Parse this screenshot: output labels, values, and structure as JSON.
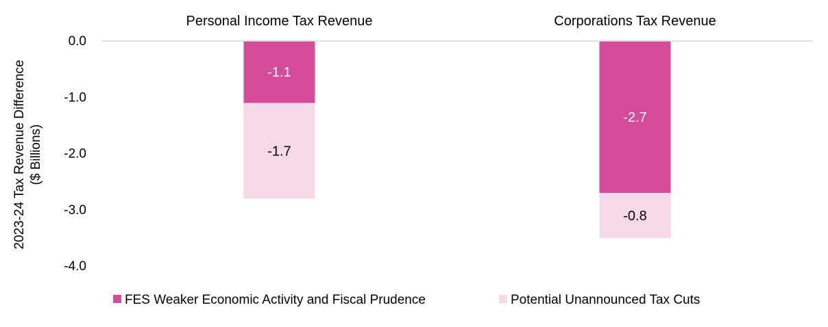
{
  "chart_data": {
    "type": "bar",
    "stacked": true,
    "categories": [
      "Personal Income Tax Revenue",
      "Corporations Tax Revenue"
    ],
    "ylabel": [
      "2023-24 Tax Revenue Difference",
      "($ Billions)"
    ],
    "ylim": [
      -4.0,
      0.0
    ],
    "yticks": [
      "0.0",
      "-1.0",
      "-2.0",
      "-3.0",
      "-4.0"
    ],
    "ytick_values": [
      0,
      -1,
      -2,
      -3,
      -4
    ],
    "grid": false,
    "legend_position": "bottom",
    "series": [
      {
        "name": "FES Weaker Economic Activity and Fiscal Prudence",
        "values": [
          -1.1,
          -2.7
        ],
        "labels": [
          "-1.1",
          "-2.7"
        ],
        "color": "#d44c97",
        "label_color": "#ffffff"
      },
      {
        "name": "Potential Unannounced Tax Cuts",
        "values": [
          -1.7,
          -0.8
        ],
        "labels": [
          "-1.7",
          "-0.8"
        ],
        "color": "#f5d9e8",
        "label_color": "#000000"
      }
    ]
  }
}
